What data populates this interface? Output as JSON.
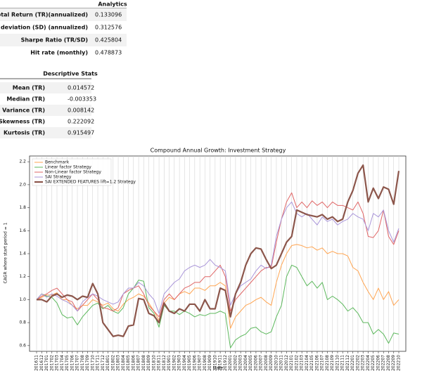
{
  "tables": [
    {
      "title": "Analytics",
      "rows": [
        [
          "Total Return (TR)(annualized)",
          0.133096
        ],
        [
          "Standard deviation (SD) (annualized)",
          0.312576
        ],
        [
          "Sharpe Ratio (TR/SD)",
          0.425804
        ],
        [
          "Hit rate (monthly)",
          0.478873
        ]
      ]
    },
    {
      "title": "Descriptive Stats",
      "rows": [
        [
          "Mean (TR)",
          0.014572
        ],
        [
          "Median (TR)",
          -0.003353
        ],
        [
          "Variance (TR)",
          0.008142
        ],
        [
          "Skewness (TR)",
          0.222092
        ],
        [
          "Kurtosis (TR)",
          0.915497
        ]
      ]
    }
  ],
  "chart_data": {
    "type": "line",
    "title": "Compound Annual Growth: Investment Strategy",
    "x_label": "Date",
    "y_label": "CAGR where start period = 1",
    "categories": [
      "201611",
      "201612",
      "201701",
      "201702",
      "201703",
      "201704",
      "201705",
      "201706",
      "201707",
      "201708",
      "201709",
      "201710",
      "201711",
      "201712",
      "201801",
      "201802",
      "201803",
      "201804",
      "201805",
      "201806",
      "201807",
      "201808",
      "201809",
      "201810",
      "201811",
      "201812",
      "201901",
      "201902",
      "201903",
      "201904",
      "201905",
      "201906",
      "201907",
      "201908",
      "201909",
      "201910",
      "201911",
      "201912",
      "202001",
      "202002",
      "202003",
      "202004",
      "202005",
      "202006",
      "202007",
      "202008",
      "202009",
      "202010",
      "202011",
      "202012",
      "202101",
      "202102",
      "202103",
      "202104",
      "202105",
      "202106",
      "202107",
      "202108",
      "202109",
      "202110",
      "202111",
      "202112",
      "202201",
      "202202",
      "202203",
      "202204",
      "202205",
      "202206",
      "202207",
      "202208",
      "202209",
      "202210"
    ],
    "series": [
      {
        "name": "Benchmark",
        "color": "#ffa552",
        "width": 1,
        "values": [
          1.0,
          1.02,
          1.04,
          1.04,
          1.06,
          1.0,
          1.0,
          0.95,
          0.92,
          0.95,
          0.95,
          1.0,
          0.98,
          0.95,
          0.97,
          0.92,
          0.9,
          0.96,
          1.0,
          1.02,
          1.05,
          1.03,
          0.97,
          0.9,
          0.82,
          0.97,
          1.02,
          1.0,
          1.05,
          1.07,
          1.05,
          1.1,
          1.1,
          1.08,
          1.12,
          1.12,
          1.15,
          1.12,
          0.75,
          0.85,
          0.9,
          0.95,
          0.97,
          1.0,
          1.02,
          0.98,
          0.95,
          1.15,
          1.3,
          1.4,
          1.47,
          1.48,
          1.47,
          1.45,
          1.46,
          1.43,
          1.45,
          1.4,
          1.42,
          1.4,
          1.4,
          1.38,
          1.28,
          1.25,
          1.15,
          1.07,
          1.0,
          1.1,
          1.0,
          1.07,
          0.95,
          1.0
        ]
      },
      {
        "name": "Linear factor Strategy",
        "color": "#5cb85c",
        "width": 1,
        "values": [
          1.0,
          1.05,
          1.03,
          1.02,
          0.97,
          0.87,
          0.84,
          0.85,
          0.78,
          0.85,
          0.9,
          0.95,
          0.97,
          0.92,
          0.95,
          0.9,
          0.88,
          0.93,
          1.05,
          1.1,
          1.17,
          1.16,
          0.93,
          0.88,
          0.76,
          0.95,
          0.9,
          0.9,
          0.87,
          0.9,
          0.88,
          0.85,
          0.87,
          0.86,
          0.88,
          0.88,
          0.9,
          0.88,
          0.58,
          0.65,
          0.68,
          0.7,
          0.75,
          0.76,
          0.72,
          0.7,
          0.72,
          0.85,
          0.95,
          1.2,
          1.3,
          1.28,
          1.2,
          1.12,
          1.16,
          1.1,
          1.15,
          1.0,
          1.03,
          1.0,
          0.96,
          0.9,
          0.93,
          0.88,
          0.8,
          0.8,
          0.7,
          0.74,
          0.7,
          0.62,
          0.71,
          0.7
        ]
      },
      {
        "name": "Non-Linear factor Strategy",
        "color": "#e06666",
        "width": 1,
        "values": [
          1.0,
          1.03,
          1.05,
          1.08,
          1.1,
          1.05,
          1.0,
          0.98,
          0.9,
          0.95,
          1.0,
          1.05,
          1.0,
          0.93,
          0.92,
          0.9,
          0.93,
          1.05,
          1.08,
          1.1,
          1.12,
          1.05,
          0.95,
          0.9,
          0.85,
          1.0,
          1.05,
          1.0,
          1.05,
          1.1,
          1.12,
          1.15,
          1.15,
          1.2,
          1.2,
          1.25,
          1.3,
          1.2,
          0.9,
          1.0,
          1.05,
          1.1,
          1.15,
          1.2,
          1.25,
          1.28,
          1.28,
          1.5,
          1.7,
          1.85,
          1.93,
          1.8,
          1.85,
          1.8,
          1.86,
          1.82,
          1.85,
          1.8,
          1.85,
          1.82,
          1.82,
          1.8,
          1.78,
          1.85,
          1.75,
          1.55,
          1.54,
          1.6,
          1.78,
          1.55,
          1.48,
          1.6
        ]
      },
      {
        "name": "SAI Strategy",
        "color": "#a995d9",
        "width": 1,
        "values": [
          1.0,
          1.05,
          1.02,
          1.05,
          1.03,
          1.0,
          0.98,
          0.95,
          0.9,
          0.98,
          1.02,
          1.05,
          1.03,
          1.0,
          0.98,
          0.96,
          0.98,
          1.05,
          1.1,
          1.1,
          1.15,
          1.12,
          1.05,
          1.0,
          0.88,
          1.05,
          1.1,
          1.15,
          1.18,
          1.25,
          1.28,
          1.3,
          1.28,
          1.3,
          1.35,
          1.3,
          1.28,
          1.25,
          0.95,
          1.05,
          1.12,
          1.15,
          1.18,
          1.25,
          1.3,
          1.27,
          1.3,
          1.55,
          1.7,
          1.8,
          1.85,
          1.75,
          1.72,
          1.75,
          1.7,
          1.65,
          1.72,
          1.68,
          1.7,
          1.65,
          1.68,
          1.7,
          1.75,
          1.72,
          1.7,
          1.6,
          1.75,
          1.72,
          1.78,
          1.6,
          1.5,
          1.62
        ]
      },
      {
        "name": "SAI EXTENDED FEATURES lift=1.2 Strategy",
        "color": "#8c564b",
        "width": 2.2,
        "values": [
          1.0,
          1.0,
          0.98,
          1.03,
          1.05,
          1.02,
          1.04,
          1.03,
          1.0,
          1.03,
          1.02,
          1.14,
          1.05,
          0.8,
          0.74,
          0.68,
          0.69,
          0.68,
          0.77,
          0.78,
          1.01,
          1.0,
          0.88,
          0.86,
          0.8,
          0.97,
          0.9,
          0.88,
          0.92,
          0.9,
          0.96,
          0.96,
          0.9,
          1.0,
          0.92,
          0.92,
          1.1,
          1.08,
          0.85,
          1.05,
          1.15,
          1.3,
          1.4,
          1.45,
          1.44,
          1.35,
          1.27,
          1.3,
          1.4,
          1.5,
          1.55,
          1.78,
          1.76,
          1.74,
          1.73,
          1.72,
          1.74,
          1.7,
          1.72,
          1.68,
          1.7,
          1.85,
          1.95,
          2.1,
          2.17,
          1.85,
          1.97,
          1.88,
          1.98,
          1.96,
          1.83,
          2.12
        ]
      }
    ],
    "ylim": [
      0.55,
      2.25
    ],
    "yticks": [
      0.6,
      0.8,
      {
        "value": 1.0,
        "label": "1.0"
      },
      1.2,
      1.4,
      1.6,
      1.8,
      {
        "value": 2.0,
        "label": "2.0"
      },
      2.2
    ],
    "grid": "x",
    "legend": "upper left"
  }
}
